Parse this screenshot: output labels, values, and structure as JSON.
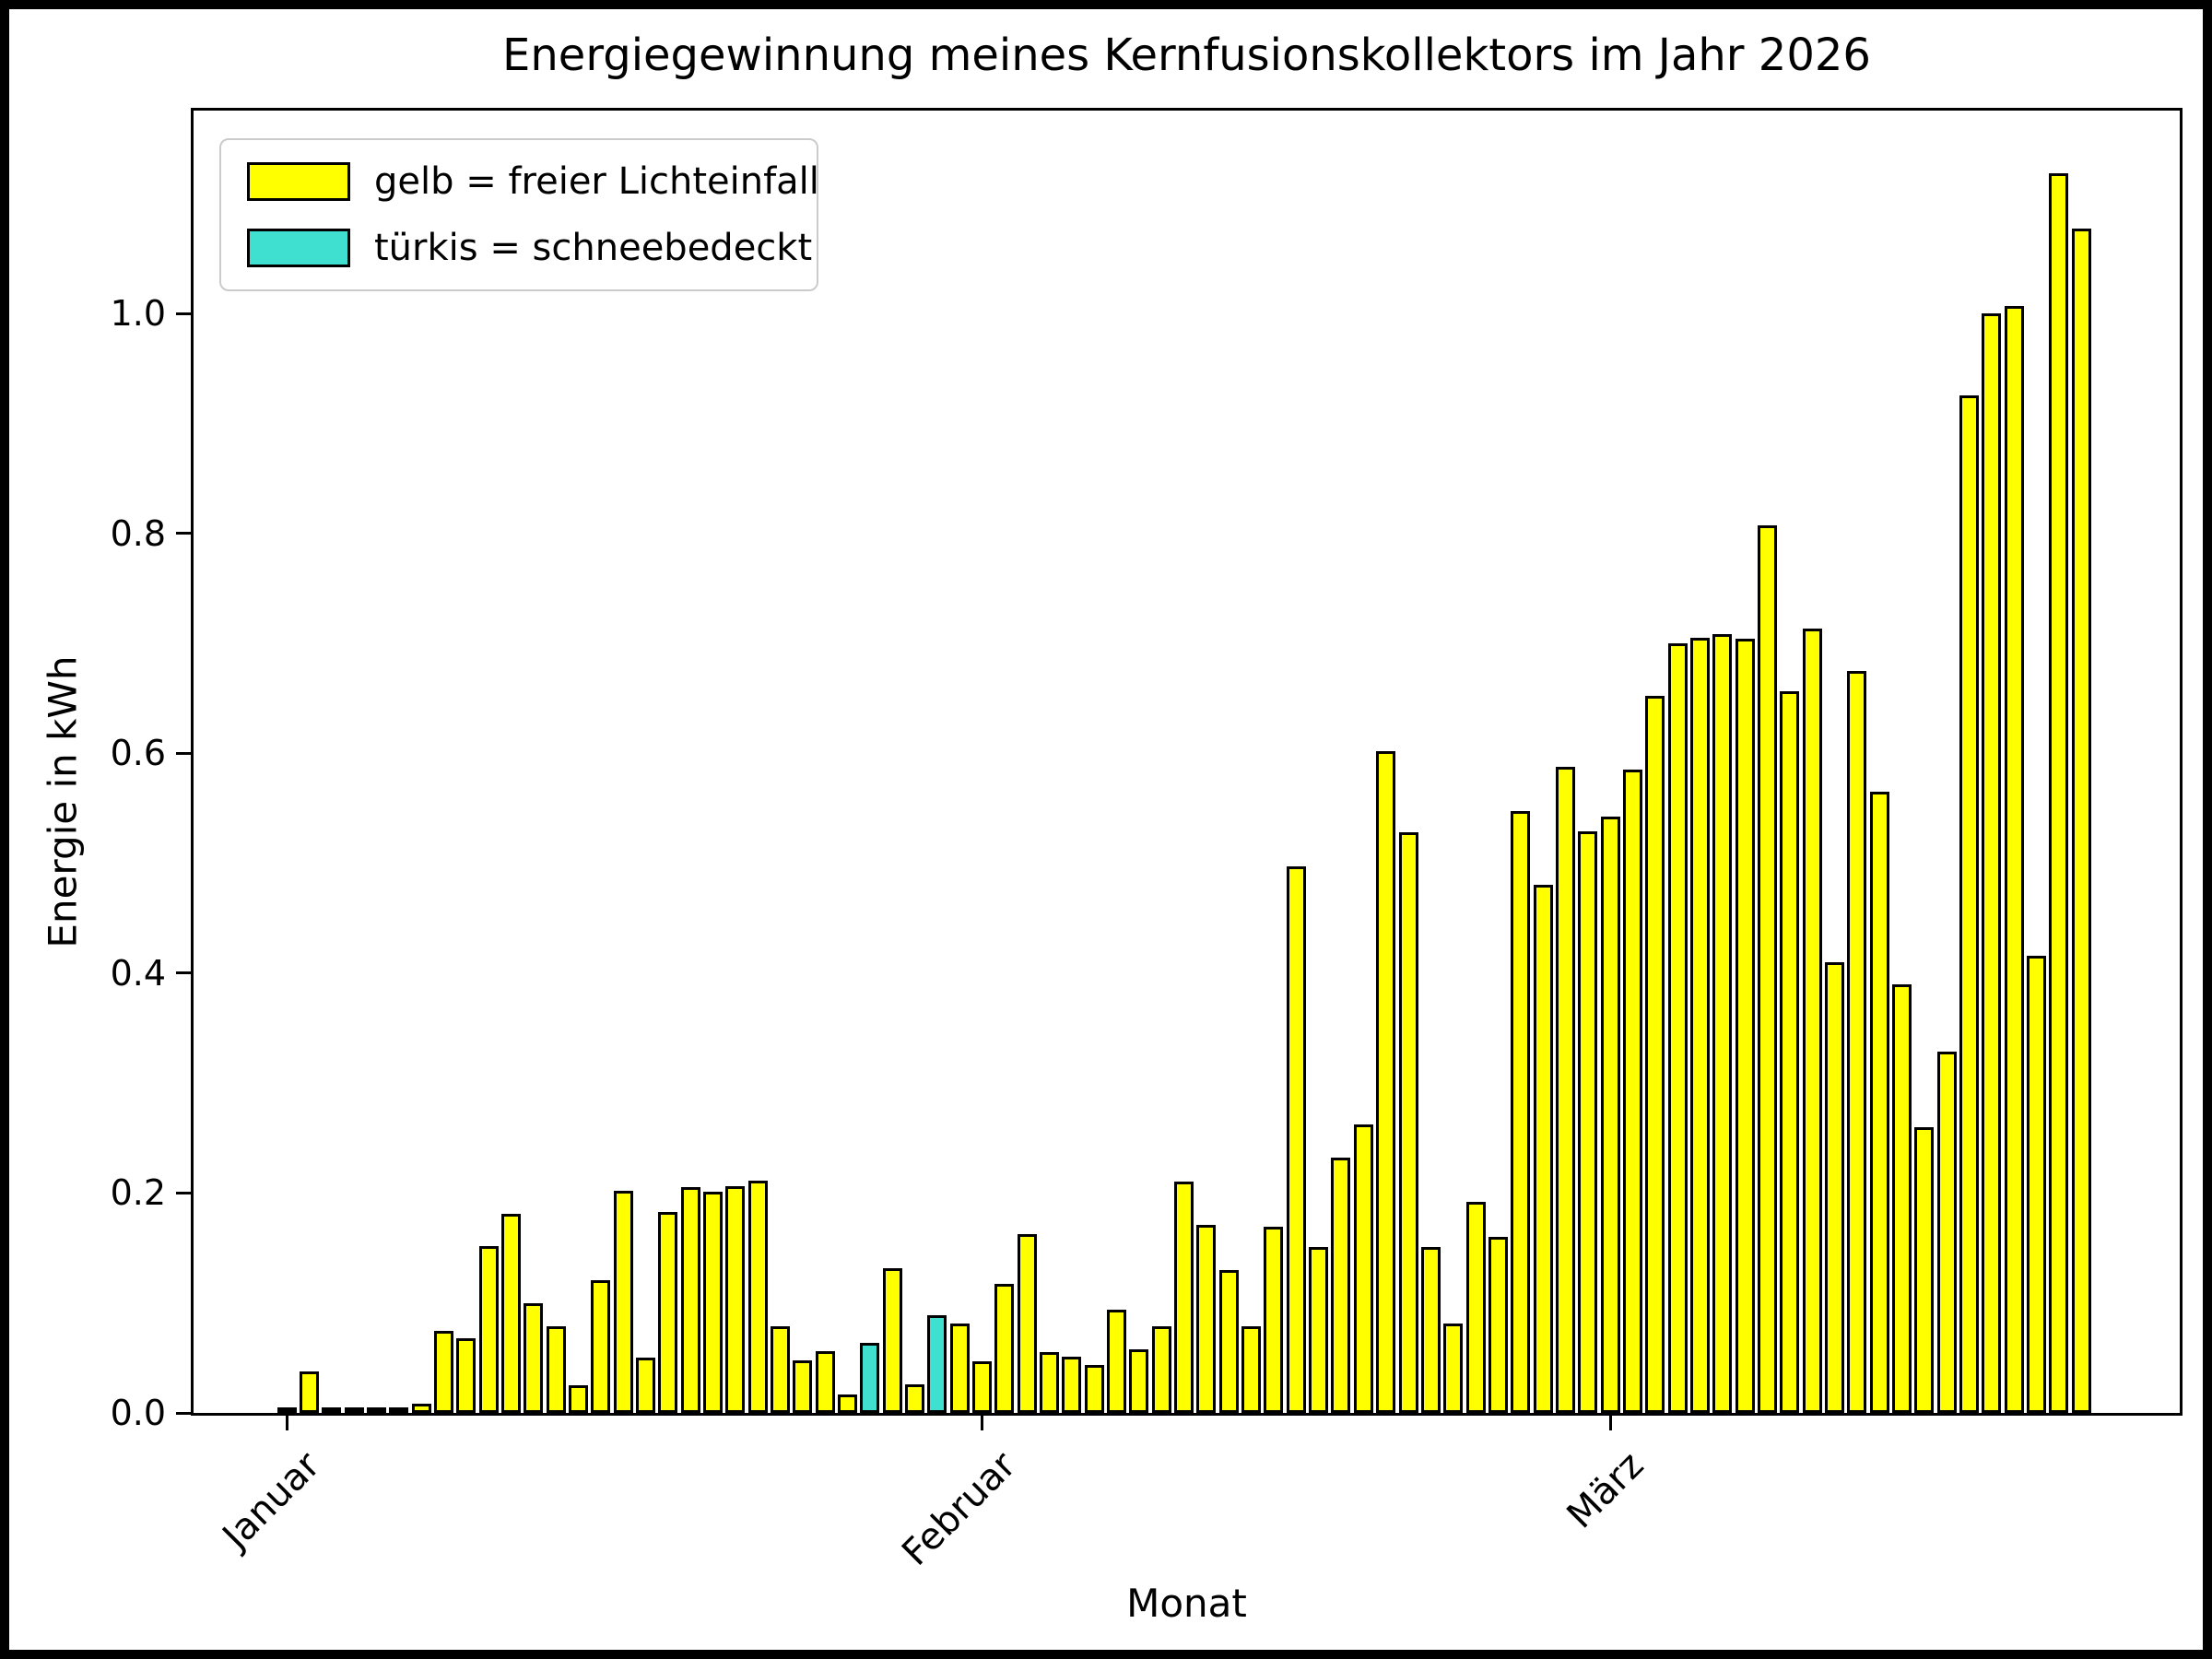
{
  "chart_data": {
    "type": "bar",
    "title": "Energiegewinnung meines Kernfusionskollektors im Jahr 2026",
    "xlabel": "Monat",
    "ylabel": "Energie in kWh",
    "legend": [
      {
        "label": "gelb = freier Lichteinfall",
        "color": "#ffff00"
      },
      {
        "label": "türkis = schneebedeckt",
        "color": "#40e0d0"
      }
    ],
    "legend_position": "upper left",
    "grid": false,
    "y_ticks": [
      "0.0",
      "0.2",
      "0.4",
      "0.6",
      "0.8",
      "1.0"
    ],
    "y_tick_values": [
      0.0,
      0.2,
      0.4,
      0.6,
      0.8,
      1.0
    ],
    "ylim": [
      0.0,
      1.185
    ],
    "x_ticks": [
      {
        "label": "Januar",
        "day_index": 0
      },
      {
        "label": "Februar",
        "day_index": 31
      },
      {
        "label": "März",
        "day_index": 59
      }
    ],
    "bar_color_default": "#ffff00",
    "bar_color_snow": "#40e0d0",
    "snow_indices": [
      26,
      29
    ],
    "values": [
      0.005,
      0.038,
      0.004,
      0.001,
      0.005,
      0.001,
      0.008,
      0.075,
      0.068,
      0.152,
      0.181,
      0.1,
      0.079,
      0.025,
      0.121,
      0.202,
      0.05,
      0.183,
      0.205,
      0.201,
      0.206,
      0.211,
      0.079,
      0.048,
      0.056,
      0.017,
      0.064,
      0.132,
      0.026,
      0.089,
      0.081,
      0.047,
      0.117,
      0.163,
      0.055,
      0.051,
      0.044,
      0.094,
      0.058,
      0.079,
      0.21,
      0.171,
      0.13,
      0.079,
      0.169,
      0.497,
      0.151,
      0.232,
      0.262,
      0.602,
      0.528,
      0.151,
      0.081,
      0.192,
      0.16,
      0.547,
      0.48,
      0.588,
      0.529,
      0.542,
      0.585,
      0.652,
      0.7,
      0.705,
      0.708,
      0.704,
      0.807,
      0.656,
      0.713,
      0.41,
      0.675,
      0.565,
      0.39,
      0.26,
      0.329,
      0.925,
      1.0,
      1.007,
      0.416,
      1.127,
      1.077
    ]
  }
}
